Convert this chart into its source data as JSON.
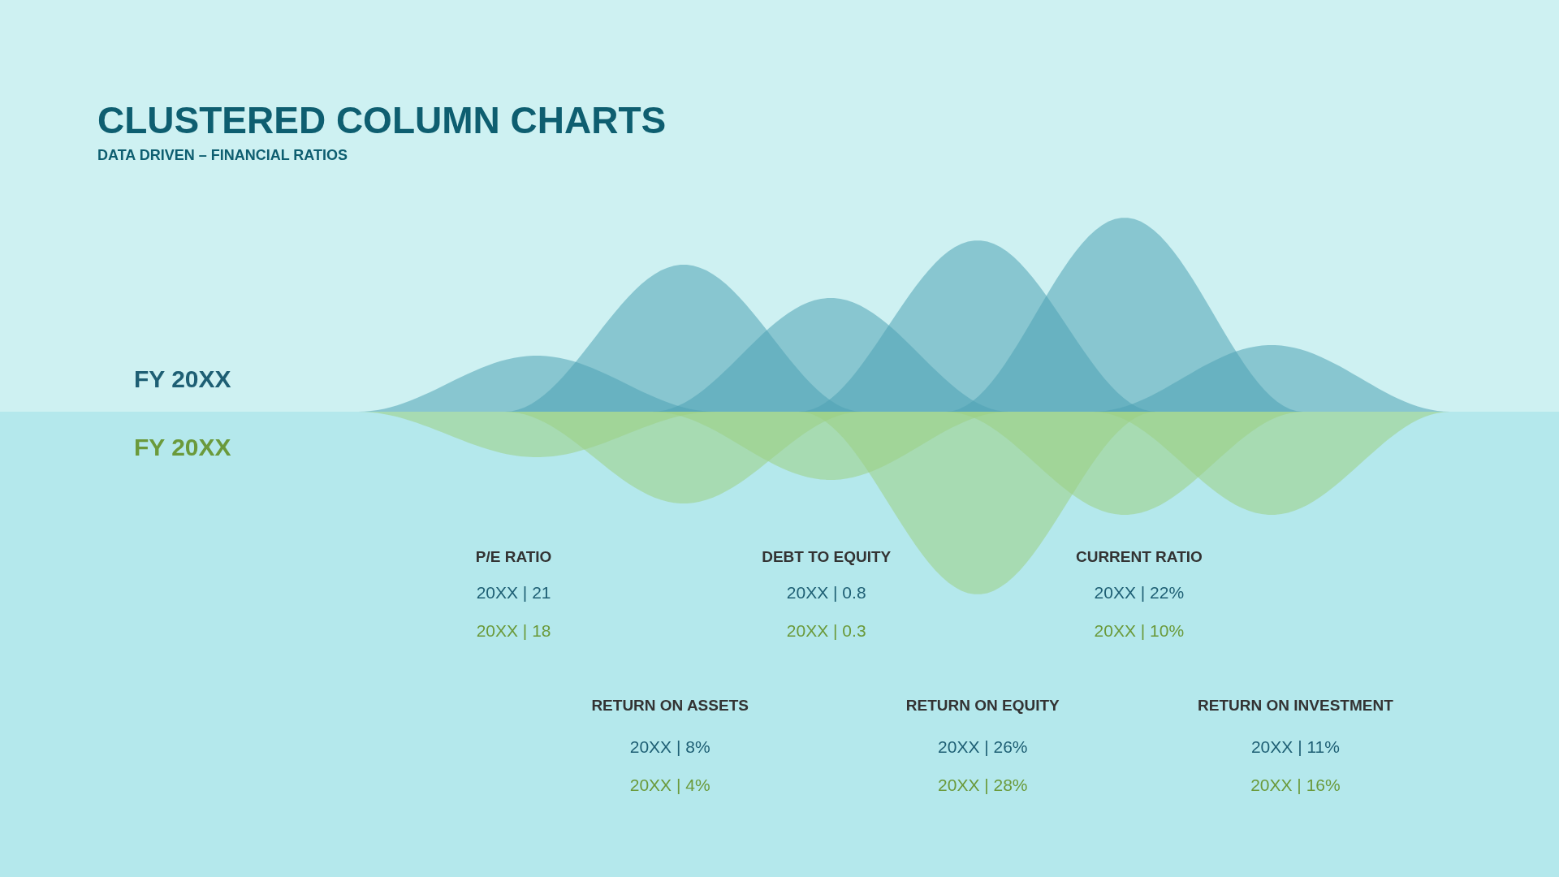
{
  "chart_data": {
    "type": "other",
    "title": "CLUSTERED COLUMN CHARTS",
    "subtitle": "DATA DRIVEN – FINANCIAL RATIOS",
    "categories": [
      "P/E RATIO",
      "RETURN ON ASSETS",
      "DEBT TO EQUITY",
      "RETURN ON EQUITY",
      "CURRENT RATIO",
      "RETURN ON INVESTMENT"
    ],
    "series": [
      {
        "name": "FY 20XX",
        "color": "#1e5f74",
        "values": [
          21,
          8,
          0.8,
          26,
          22,
          11
        ],
        "value_labels": [
          "20XX | 21",
          "20XX | 8%",
          "20XX | 0.8",
          "20XX | 26%",
          "20XX | 22%",
          "20XX | 11%"
        ]
      },
      {
        "name": "FY 20XX",
        "color": "#6b9a3b",
        "values": [
          18,
          4,
          0.3,
          28,
          10,
          16
        ],
        "value_labels": [
          "20XX | 18",
          "20XX | 4%",
          "20XX | 0.3",
          "20XX | 28%",
          "20XX | 10%",
          "20XX | 16%"
        ]
      }
    ]
  }
}
